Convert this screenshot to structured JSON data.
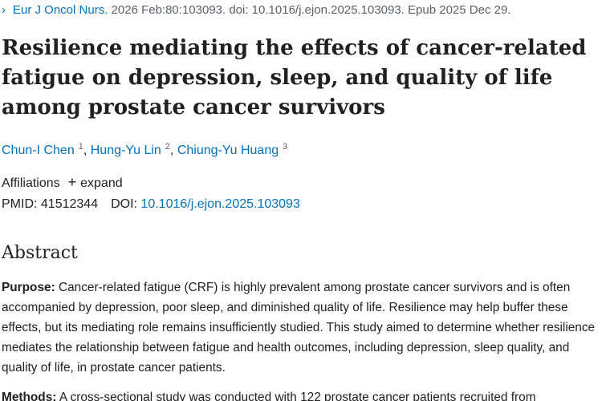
{
  "citation": {
    "journal": "Eur J Oncol Nurs.",
    "details": " 2026 Feb:80:103093. doi: 10.1016/j.ejon.2025.103093. Epub 2025 Dec 29."
  },
  "article": {
    "title": "Resilience mediating the effects of cancer-related fatigue on depression, sleep, and quality of life among prostate cancer survivors"
  },
  "authors": [
    {
      "name": "Chun-I Chen",
      "sup": "1"
    },
    {
      "name": "Hung-Yu Lin",
      "sup": "2"
    },
    {
      "name": "Chiung-Yu Huang",
      "sup": "3"
    }
  ],
  "affiliations": {
    "label": "Affiliations",
    "expand_label": "expand"
  },
  "ids": {
    "pmid_label": "PMID:",
    "pmid": "41512344",
    "doi_label": "DOI:",
    "doi": "10.1016/j.ejon.2025.103093"
  },
  "abstract": {
    "heading": "Abstract",
    "purpose_label": "Purpose:",
    "purpose_text": " Cancer-related fatigue (CRF) is highly prevalent among prostate cancer survivors and is often accompanied by depression, poor sleep, and diminished quality of life. Resilience may help buffer these effects, but its mediating role remains insufficiently studied. This study aimed to determine whether resilience mediates the relationship between fatigue and health outcomes, including depression, sleep quality, and quality of life, in prostate cancer patients.",
    "methods_label": "Methods:",
    "methods_text": " A cross-sectional study was conducted with 122 prostate cancer patients recruited from"
  },
  "colors": {
    "link": "#0071bc",
    "text": "#212121",
    "muted": "#5b616b"
  },
  "icons": {
    "citation_chevron": "chevron-right-icon",
    "affiliations_expand": "plus-icon"
  }
}
